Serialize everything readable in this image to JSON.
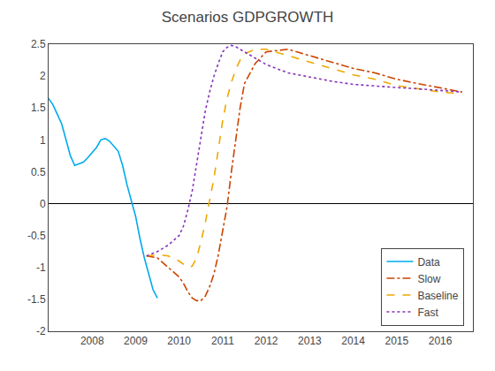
{
  "chart_data": {
    "type": "line",
    "title": "Scenarios GDPGROWTH",
    "xlim": [
      2007.0,
      2016.75
    ],
    "ylim": [
      -2.0,
      2.5
    ],
    "xticks": [
      2008,
      2009,
      2010,
      2011,
      2012,
      2013,
      2014,
      2015,
      2016
    ],
    "yticks": [
      -2,
      -1.5,
      -1,
      -0.5,
      0,
      0.5,
      1,
      1.5,
      2,
      2.5
    ],
    "grid": false,
    "legend": "lower right",
    "series": [
      {
        "name": "Data",
        "color": "#00AAEE",
        "line_style": "solid",
        "x": [
          2007.0,
          2007.1,
          2007.2,
          2007.3,
          2007.4,
          2007.5,
          2007.6,
          2007.7,
          2007.8,
          2007.9,
          2008.0,
          2008.1,
          2008.2,
          2008.3,
          2008.4,
          2008.5,
          2008.6,
          2008.7,
          2008.8,
          2008.9,
          2009.0,
          2009.1,
          2009.2,
          2009.3,
          2009.4,
          2009.5
        ],
        "values": [
          1.65,
          1.55,
          1.4,
          1.25,
          1.0,
          0.75,
          0.6,
          0.62,
          0.65,
          0.72,
          0.8,
          0.88,
          1.0,
          1.02,
          0.98,
          0.9,
          0.82,
          0.6,
          0.3,
          0.05,
          -0.2,
          -0.55,
          -0.85,
          -1.1,
          -1.35,
          -1.48
        ]
      },
      {
        "name": "Slow",
        "color": "#CC4400",
        "line_style": "dashdot",
        "x": [
          2009.25,
          2009.5,
          2009.75,
          2010.0,
          2010.1,
          2010.2,
          2010.3,
          2010.4,
          2010.5,
          2010.6,
          2010.7,
          2010.8,
          2010.9,
          2011.0,
          2011.1,
          2011.2,
          2011.3,
          2011.4,
          2011.5,
          2011.75,
          2012.0,
          2012.5,
          2013.0,
          2013.5,
          2014.0,
          2014.5,
          2015.0,
          2015.5,
          2016.0,
          2016.5
        ],
        "values": [
          -0.82,
          -0.85,
          -1.0,
          -1.15,
          -1.25,
          -1.38,
          -1.48,
          -1.52,
          -1.52,
          -1.45,
          -1.3,
          -1.1,
          -0.8,
          -0.45,
          -0.05,
          0.5,
          1.0,
          1.5,
          1.88,
          2.2,
          2.38,
          2.42,
          2.32,
          2.22,
          2.12,
          2.05,
          1.95,
          1.88,
          1.82,
          1.75
        ]
      },
      {
        "name": "Baseline",
        "color": "#EEA800",
        "line_style": "dashed",
        "x": [
          2009.25,
          2009.5,
          2009.75,
          2010.0,
          2010.1,
          2010.2,
          2010.3,
          2010.4,
          2010.5,
          2010.6,
          2010.7,
          2010.8,
          2010.9,
          2011.0,
          2011.1,
          2011.2,
          2011.3,
          2011.4,
          2011.5,
          2011.75,
          2012.0,
          2012.5,
          2013.0,
          2013.5,
          2014.0,
          2014.5,
          2015.0,
          2015.5,
          2016.0,
          2016.5
        ],
        "values": [
          -0.82,
          -0.8,
          -0.82,
          -0.9,
          -0.95,
          -1.0,
          -0.98,
          -0.85,
          -0.6,
          -0.3,
          0.05,
          0.4,
          0.85,
          1.3,
          1.65,
          1.9,
          2.1,
          2.25,
          2.35,
          2.42,
          2.42,
          2.32,
          2.22,
          2.12,
          2.02,
          1.95,
          1.85,
          1.8,
          1.75,
          1.72
        ]
      },
      {
        "name": "Fast",
        "color": "#8833BB",
        "line_style": "dotted",
        "x": [
          2009.25,
          2009.5,
          2009.75,
          2010.0,
          2010.1,
          2010.2,
          2010.3,
          2010.4,
          2010.5,
          2010.6,
          2010.7,
          2010.8,
          2010.9,
          2011.0,
          2011.1,
          2011.2,
          2011.3,
          2011.4,
          2011.5,
          2011.75,
          2012.0,
          2012.5,
          2013.0,
          2013.5,
          2014.0,
          2014.5,
          2015.0,
          2015.5,
          2016.0,
          2016.5
        ],
        "values": [
          -0.82,
          -0.75,
          -0.65,
          -0.5,
          -0.35,
          -0.1,
          0.2,
          0.6,
          1.05,
          1.45,
          1.75,
          2.0,
          2.2,
          2.38,
          2.45,
          2.48,
          2.46,
          2.42,
          2.38,
          2.28,
          2.18,
          2.05,
          1.98,
          1.92,
          1.87,
          1.84,
          1.82,
          1.8,
          1.78,
          1.75
        ]
      }
    ]
  }
}
